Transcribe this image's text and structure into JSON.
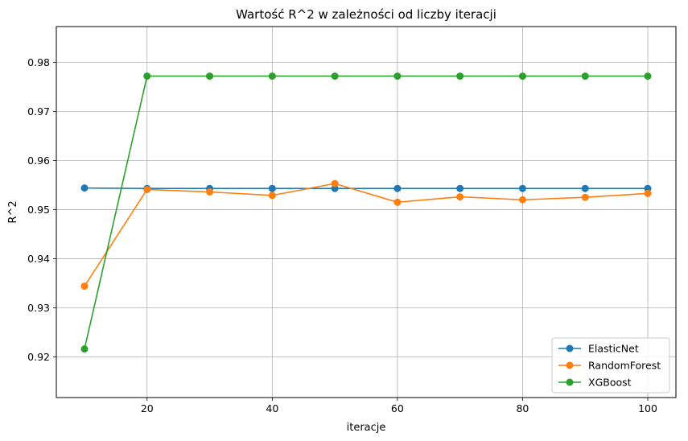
{
  "chart_data": {
    "type": "line",
    "title": "Wartość R^2 w zależności od liczby iteracji",
    "xlabel": "iteracje",
    "ylabel": "R^2",
    "xlim": [
      5.5,
      104.5
    ],
    "ylim": [
      0.9117,
      0.9873
    ],
    "xticks": [
      20,
      40,
      60,
      80,
      100
    ],
    "yticks": [
      0.92,
      0.93,
      0.94,
      0.95,
      0.96,
      0.97,
      0.98
    ],
    "grid": true,
    "legend_position": "lower-right",
    "x": [
      10,
      20,
      30,
      40,
      50,
      60,
      70,
      80,
      90,
      100
    ],
    "series": [
      {
        "name": "ElasticNet",
        "color": "#1f77b4",
        "values": [
          0.9544,
          0.9543,
          0.9543,
          0.9543,
          0.9543,
          0.9543,
          0.9543,
          0.9543,
          0.9543,
          0.9543
        ]
      },
      {
        "name": "RandomForest",
        "color": "#ff7f0e",
        "values": [
          0.9344,
          0.9541,
          0.9536,
          0.9529,
          0.9553,
          0.9515,
          0.9526,
          0.952,
          0.9525,
          0.9533
        ]
      },
      {
        "name": "XGBoost",
        "color": "#2ca02c",
        "values": [
          0.9216,
          0.9772,
          0.9772,
          0.9772,
          0.9772,
          0.9772,
          0.9772,
          0.9772,
          0.9772,
          0.9772
        ]
      }
    ]
  }
}
